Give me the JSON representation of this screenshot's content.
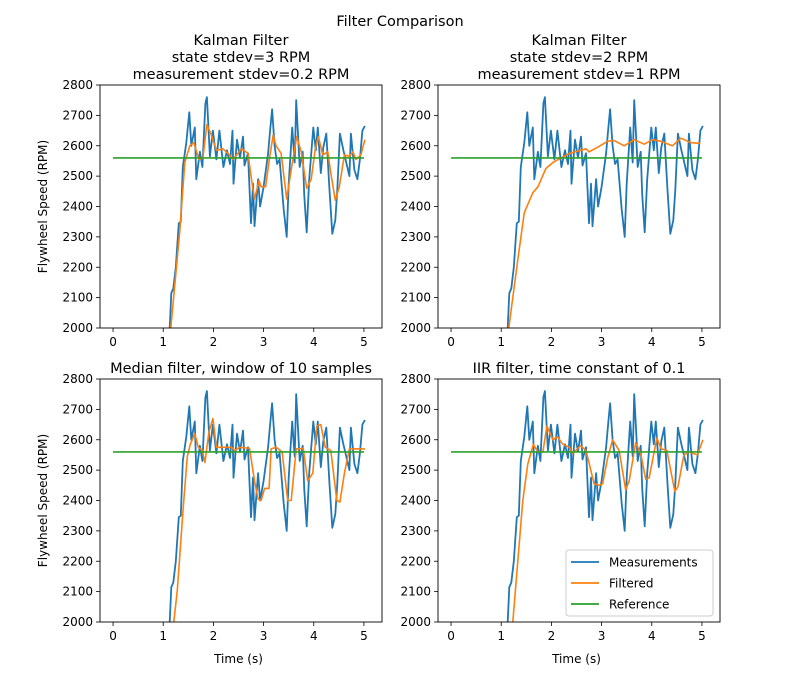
{
  "chart_data": {
    "type": "line",
    "title": "Filter Comparison",
    "xlim": [
      -0.26,
      5.36
    ],
    "ylim": [
      2000,
      2800
    ],
    "xticks": [
      0,
      1,
      2,
      3,
      4,
      5
    ],
    "yticks": [
      2000,
      2100,
      2200,
      2300,
      2400,
      2500,
      2600,
      2700,
      2800
    ],
    "grid": false,
    "colors": {
      "Measurements": "#1f77b4",
      "Filtered": "#ff7f0e",
      "Reference": "#2ca02c"
    },
    "legend": {
      "placement": "lower-right",
      "panel": 3,
      "entries": [
        "Measurements",
        "Filtered",
        "Reference"
      ]
    },
    "reference": 2560,
    "measurements": [
      [
        1.05,
        1900
      ],
      [
        1.13,
        2000
      ],
      [
        1.16,
        2115
      ],
      [
        1.2,
        2130
      ],
      [
        1.25,
        2200
      ],
      [
        1.31,
        2345
      ],
      [
        1.35,
        2350
      ],
      [
        1.39,
        2530
      ],
      [
        1.46,
        2610
      ],
      [
        1.52,
        2710
      ],
      [
        1.56,
        2600
      ],
      [
        1.63,
        2660
      ],
      [
        1.66,
        2490
      ],
      [
        1.73,
        2580
      ],
      [
        1.78,
        2530
      ],
      [
        1.84,
        2740
      ],
      [
        1.87,
        2760
      ],
      [
        1.93,
        2565
      ],
      [
        1.99,
        2650
      ],
      [
        2.06,
        2555
      ],
      [
        2.12,
        2650
      ],
      [
        2.2,
        2530
      ],
      [
        2.27,
        2585
      ],
      [
        2.33,
        2540
      ],
      [
        2.38,
        2650
      ],
      [
        2.4,
        2475
      ],
      [
        2.47,
        2620
      ],
      [
        2.53,
        2560
      ],
      [
        2.59,
        2630
      ],
      [
        2.62,
        2535
      ],
      [
        2.69,
        2575
      ],
      [
        2.75,
        2345
      ],
      [
        2.79,
        2475
      ],
      [
        2.82,
        2335
      ],
      [
        2.89,
        2490
      ],
      [
        2.93,
        2400
      ],
      [
        3.0,
        2465
      ],
      [
        3.09,
        2575
      ],
      [
        3.13,
        2650
      ],
      [
        3.17,
        2720
      ],
      [
        3.22,
        2600
      ],
      [
        3.27,
        2540
      ],
      [
        3.32,
        2555
      ],
      [
        3.4,
        2390
      ],
      [
        3.46,
        2300
      ],
      [
        3.5,
        2475
      ],
      [
        3.57,
        2660
      ],
      [
        3.62,
        2545
      ],
      [
        3.65,
        2750
      ],
      [
        3.72,
        2530
      ],
      [
        3.78,
        2580
      ],
      [
        3.81,
        2440
      ],
      [
        3.86,
        2315
      ],
      [
        3.91,
        2490
      ],
      [
        3.99,
        2660
      ],
      [
        4.04,
        2585
      ],
      [
        4.08,
        2660
      ],
      [
        4.14,
        2510
      ],
      [
        4.19,
        2595
      ],
      [
        4.25,
        2640
      ],
      [
        4.31,
        2465
      ],
      [
        4.37,
        2310
      ],
      [
        4.43,
        2355
      ],
      [
        4.47,
        2455
      ],
      [
        4.52,
        2640
      ],
      [
        4.59,
        2585
      ],
      [
        4.64,
        2550
      ],
      [
        4.71,
        2500
      ],
      [
        4.74,
        2640
      ],
      [
        4.81,
        2520
      ],
      [
        4.87,
        2490
      ],
      [
        4.92,
        2555
      ],
      [
        4.97,
        2650
      ],
      [
        5.02,
        2665
      ]
    ],
    "panels": [
      {
        "title_lines": [
          "Kalman Filter",
          "state stdev=3 RPM",
          "measurement stdev=0.2 RPM"
        ],
        "ylabel": "Flywheel Speed (RPM)",
        "xlabel": "",
        "filtered": [
          [
            1.15,
            2000
          ],
          [
            1.33,
            2320
          ],
          [
            1.43,
            2545
          ],
          [
            1.53,
            2600
          ],
          [
            1.61,
            2610
          ],
          [
            1.71,
            2555
          ],
          [
            1.79,
            2560
          ],
          [
            1.87,
            2670
          ],
          [
            1.96,
            2635
          ],
          [
            2.06,
            2585
          ],
          [
            2.19,
            2590
          ],
          [
            2.32,
            2570
          ],
          [
            2.39,
            2555
          ],
          [
            2.56,
            2590
          ],
          [
            2.69,
            2575
          ],
          [
            2.75,
            2500
          ],
          [
            2.82,
            2425
          ],
          [
            2.91,
            2485
          ],
          [
            2.95,
            2465
          ],
          [
            3.04,
            2465
          ],
          [
            3.11,
            2550
          ],
          [
            3.19,
            2635
          ],
          [
            3.25,
            2600
          ],
          [
            3.35,
            2575
          ],
          [
            3.46,
            2425
          ],
          [
            3.55,
            2520
          ],
          [
            3.66,
            2630
          ],
          [
            3.75,
            2580
          ],
          [
            3.86,
            2460
          ],
          [
            3.95,
            2490
          ],
          [
            4.03,
            2590
          ],
          [
            4.09,
            2630
          ],
          [
            4.18,
            2570
          ],
          [
            4.28,
            2580
          ],
          [
            4.34,
            2510
          ],
          [
            4.43,
            2420
          ],
          [
            4.51,
            2465
          ],
          [
            4.61,
            2570
          ],
          [
            4.71,
            2565
          ],
          [
            4.78,
            2580
          ],
          [
            4.84,
            2555
          ],
          [
            4.94,
            2570
          ],
          [
            5.02,
            2620
          ]
        ]
      },
      {
        "title_lines": [
          "Kalman Filter",
          "state stdev=2 RPM",
          "measurement stdev=1 RPM"
        ],
        "ylabel": "",
        "xlabel": "",
        "filtered": [
          [
            1.15,
            2000
          ],
          [
            1.33,
            2225
          ],
          [
            1.46,
            2380
          ],
          [
            1.63,
            2445
          ],
          [
            1.73,
            2465
          ],
          [
            1.89,
            2525
          ],
          [
            2.03,
            2545
          ],
          [
            2.19,
            2560
          ],
          [
            2.36,
            2575
          ],
          [
            2.69,
            2590
          ],
          [
            2.75,
            2580
          ],
          [
            2.92,
            2595
          ],
          [
            3.12,
            2615
          ],
          [
            3.25,
            2617
          ],
          [
            3.45,
            2600
          ],
          [
            3.65,
            2620
          ],
          [
            3.85,
            2605
          ],
          [
            4.01,
            2620
          ],
          [
            4.18,
            2615
          ],
          [
            4.41,
            2600
          ],
          [
            4.58,
            2625
          ],
          [
            4.78,
            2610
          ],
          [
            4.97,
            2608
          ]
        ]
      },
      {
        "title_lines": [
          "Median filter, window of 10 samples"
        ],
        "ylabel": "Flywheel Speed (RPM)",
        "xlabel": "Time (s)",
        "filtered": [
          [
            1.21,
            2000
          ],
          [
            1.28,
            2105
          ],
          [
            1.4,
            2380
          ],
          [
            1.48,
            2545
          ],
          [
            1.54,
            2585
          ],
          [
            1.63,
            2620
          ],
          [
            1.7,
            2575
          ],
          [
            1.78,
            2565
          ],
          [
            1.83,
            2525
          ],
          [
            1.91,
            2625
          ],
          [
            1.99,
            2670
          ],
          [
            2.06,
            2575
          ],
          [
            2.36,
            2575
          ],
          [
            2.42,
            2565
          ],
          [
            2.52,
            2575
          ],
          [
            2.72,
            2572
          ],
          [
            2.82,
            2465
          ],
          [
            2.89,
            2405
          ],
          [
            2.95,
            2400
          ],
          [
            3.02,
            2440
          ],
          [
            3.11,
            2440
          ],
          [
            3.15,
            2570
          ],
          [
            3.25,
            2575
          ],
          [
            3.37,
            2560
          ],
          [
            3.48,
            2400
          ],
          [
            3.55,
            2400
          ],
          [
            3.65,
            2570
          ],
          [
            3.79,
            2572
          ],
          [
            3.88,
            2465
          ],
          [
            3.98,
            2490
          ],
          [
            4.06,
            2645
          ],
          [
            4.14,
            2650
          ],
          [
            4.23,
            2575
          ],
          [
            4.34,
            2565
          ],
          [
            4.46,
            2400
          ],
          [
            4.52,
            2395
          ],
          [
            4.61,
            2490
          ],
          [
            4.71,
            2570
          ],
          [
            5.02,
            2570
          ]
        ]
      },
      {
        "title_lines": [
          "IIR filter, time constant of 0.1"
        ],
        "ylabel": "",
        "xlabel": "Time (s)",
        "filtered": [
          [
            1.23,
            2000
          ],
          [
            1.33,
            2200
          ],
          [
            1.43,
            2400
          ],
          [
            1.53,
            2520
          ],
          [
            1.64,
            2585
          ],
          [
            1.73,
            2560
          ],
          [
            1.83,
            2560
          ],
          [
            1.91,
            2645
          ],
          [
            2.03,
            2600
          ],
          [
            2.12,
            2610
          ],
          [
            2.23,
            2585
          ],
          [
            2.36,
            2575
          ],
          [
            2.42,
            2555
          ],
          [
            2.58,
            2580
          ],
          [
            2.69,
            2565
          ],
          [
            2.85,
            2455
          ],
          [
            2.95,
            2450
          ],
          [
            3.02,
            2455
          ],
          [
            3.12,
            2540
          ],
          [
            3.22,
            2600
          ],
          [
            3.35,
            2565
          ],
          [
            3.48,
            2435
          ],
          [
            3.55,
            2465
          ],
          [
            3.68,
            2590
          ],
          [
            3.78,
            2555
          ],
          [
            3.88,
            2470
          ],
          [
            3.95,
            2475
          ],
          [
            4.1,
            2605
          ],
          [
            4.19,
            2570
          ],
          [
            4.3,
            2565
          ],
          [
            4.46,
            2430
          ],
          [
            4.52,
            2445
          ],
          [
            4.64,
            2550
          ],
          [
            4.74,
            2560
          ],
          [
            4.91,
            2550
          ],
          [
            5.02,
            2600
          ]
        ]
      }
    ]
  }
}
